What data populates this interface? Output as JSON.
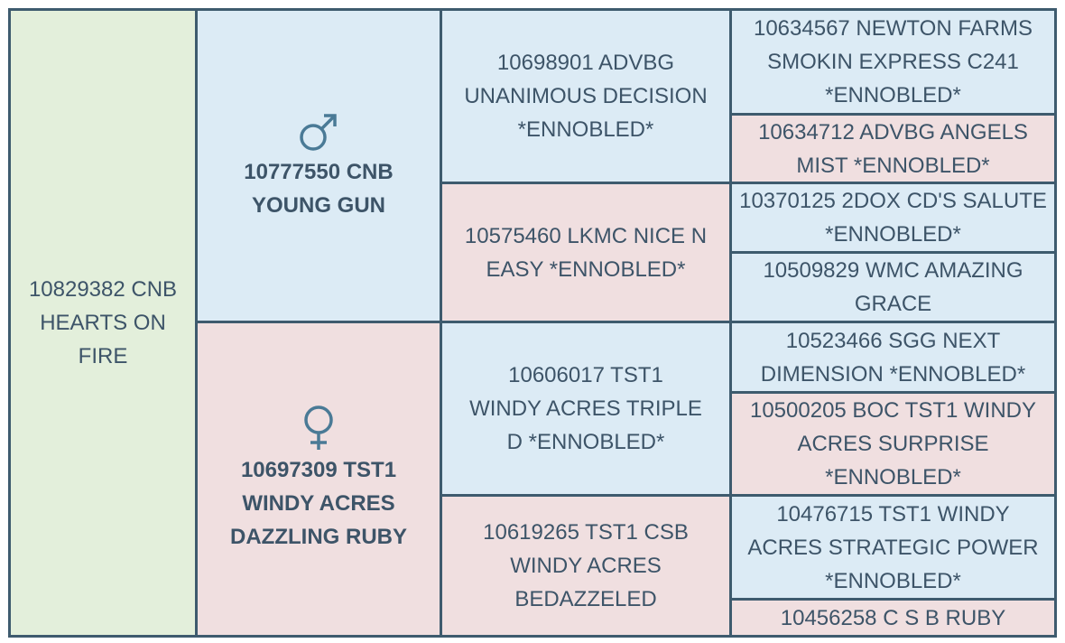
{
  "subject": "10829382 CNB HEARTS ON FIRE",
  "sire": {
    "name": "10777550 CNB YOUNG GUN",
    "sire": {
      "name": "10698901 ADVBG UNANIMOUS DECISION *ENNOBLED*",
      "sire": "10634567 NEWTON FARMS SMOKIN EXPRESS C241 *ENNOBLED*",
      "dam": "10634712 ADVBG ANGELS MIST *ENNOBLED*"
    },
    "dam": {
      "name": "10575460 LKMC NICE N EASY *ENNOBLED*",
      "sire": "10370125 2DOX CD'S SALUTE *ENNOBLED*",
      "dam": "10509829 WMC AMAZING GRACE"
    }
  },
  "dam": {
    "name": "10697309 TST1 WINDY ACRES DAZZLING RUBY",
    "sire": {
      "name": "10606017 TST1 WINDY ACRES TRIPLE D *ENNOBLED*",
      "sire": "10523466 SGG NEXT DIMENSION *ENNOBLED*",
      "dam": "10500205 BOC TST1 WINDY ACRES SURPRISE *ENNOBLED*"
    },
    "dam": {
      "name": "10619265 TST1 CSB WINDY ACRES BEDAZZELED",
      "sire": "10476715 TST1 WINDY ACRES STRATEGIC POWER *ENNOBLED*",
      "dam": "10456258 C S B RUBY"
    }
  }
}
